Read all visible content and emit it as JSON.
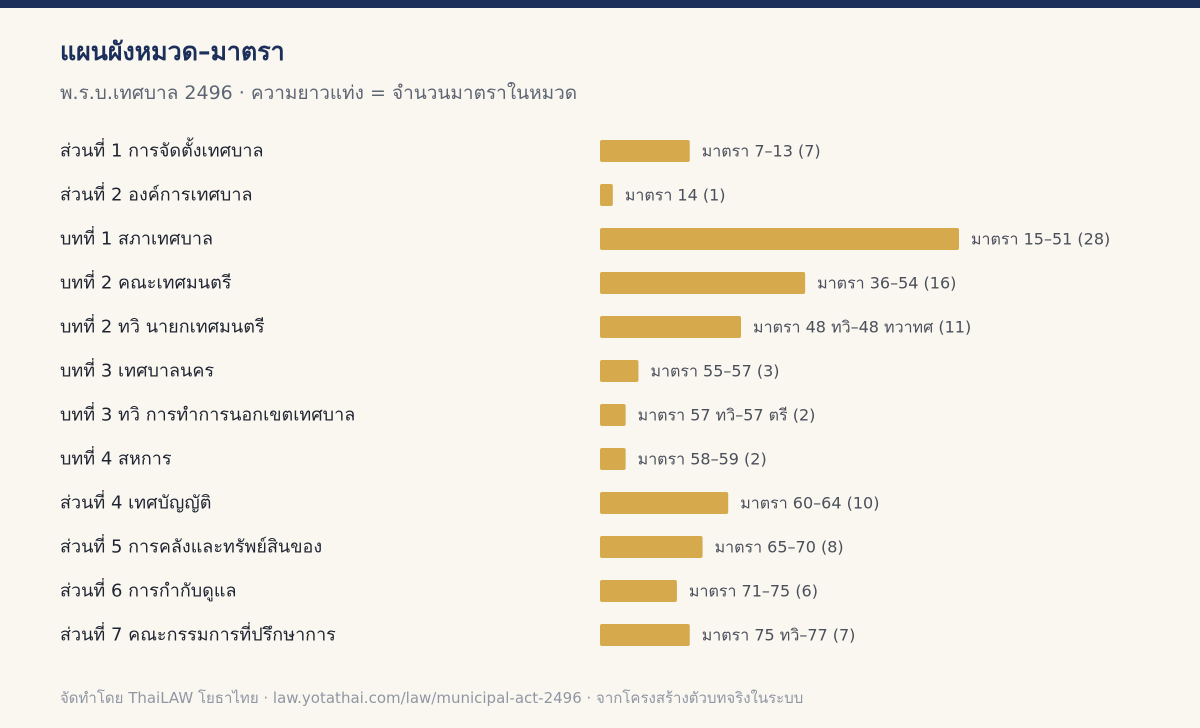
{
  "header": {
    "title": "แผนผังหมวด–มาตรา",
    "subtitle": "พ.ร.บ.เทศบาล 2496 · ความยาวแท่ง = จำนวนมาตราในหมวด"
  },
  "footer": {
    "credit": "จัดทำโดย ThaiLAW โยธาไทย · law.yotathai.com/law/municipal-act-2496 · จากโครงสร้างตัวบทจริงในระบบ"
  },
  "colors": {
    "accent": "#1c2f5a",
    "bar": "#d6aa4c",
    "background": "#faf7f1"
  },
  "chart_data": {
    "type": "bar",
    "orientation": "horizontal",
    "title": "แผนผังหมวด–มาตรา",
    "subtitle": "พ.ร.บ.เทศบาล 2496 · ความยาวแท่ง = จำนวนมาตราในหมวด",
    "grid": false,
    "categories": [
      "ส่วนที่ 1 การจัดตั้งเทศบาล",
      "ส่วนที่ 2 องค์การเทศบาล",
      "บทที่ 1 สภาเทศบาล",
      "บทที่ 2 คณะเทศมนตรี",
      "บทที่ 2 ทวิ นายกเทศมนตรี",
      "บทที่ 3 เทศบาลนคร",
      "บทที่ 3 ทวิ การทำการนอกเขตเทศบาล",
      "บทที่ 4 สหการ",
      "ส่วนที่ 4 เทศบัญญัติ",
      "ส่วนที่ 5 การคลังและทรัพย์สินของ",
      "ส่วนที่ 6 การกำกับดูแล",
      "ส่วนที่ 7 คณะกรรมการที่ปรึกษาการ"
    ],
    "values": [
      7,
      1,
      28,
      16,
      11,
      3,
      2,
      2,
      10,
      8,
      6,
      7
    ],
    "labels": [
      "มาตรา 7–13 (7)",
      "มาตรา 14 (1)",
      "มาตรา 15–51 (28)",
      "มาตรา 36–54 (16)",
      "มาตรา 48 ทวิ–48 ทวาทศ (11)",
      "มาตรา 55–57 (3)",
      "มาตรา 57 ทวิ–57 ตรี (2)",
      "มาตรา 58–59 (2)",
      "มาตรา 60–64 (10)",
      "มาตรา 65–70 (8)",
      "มาตรา 71–75 (6)",
      "มาตรา 75 ทวิ–77 (7)"
    ],
    "xlim": [
      0,
      28
    ]
  }
}
